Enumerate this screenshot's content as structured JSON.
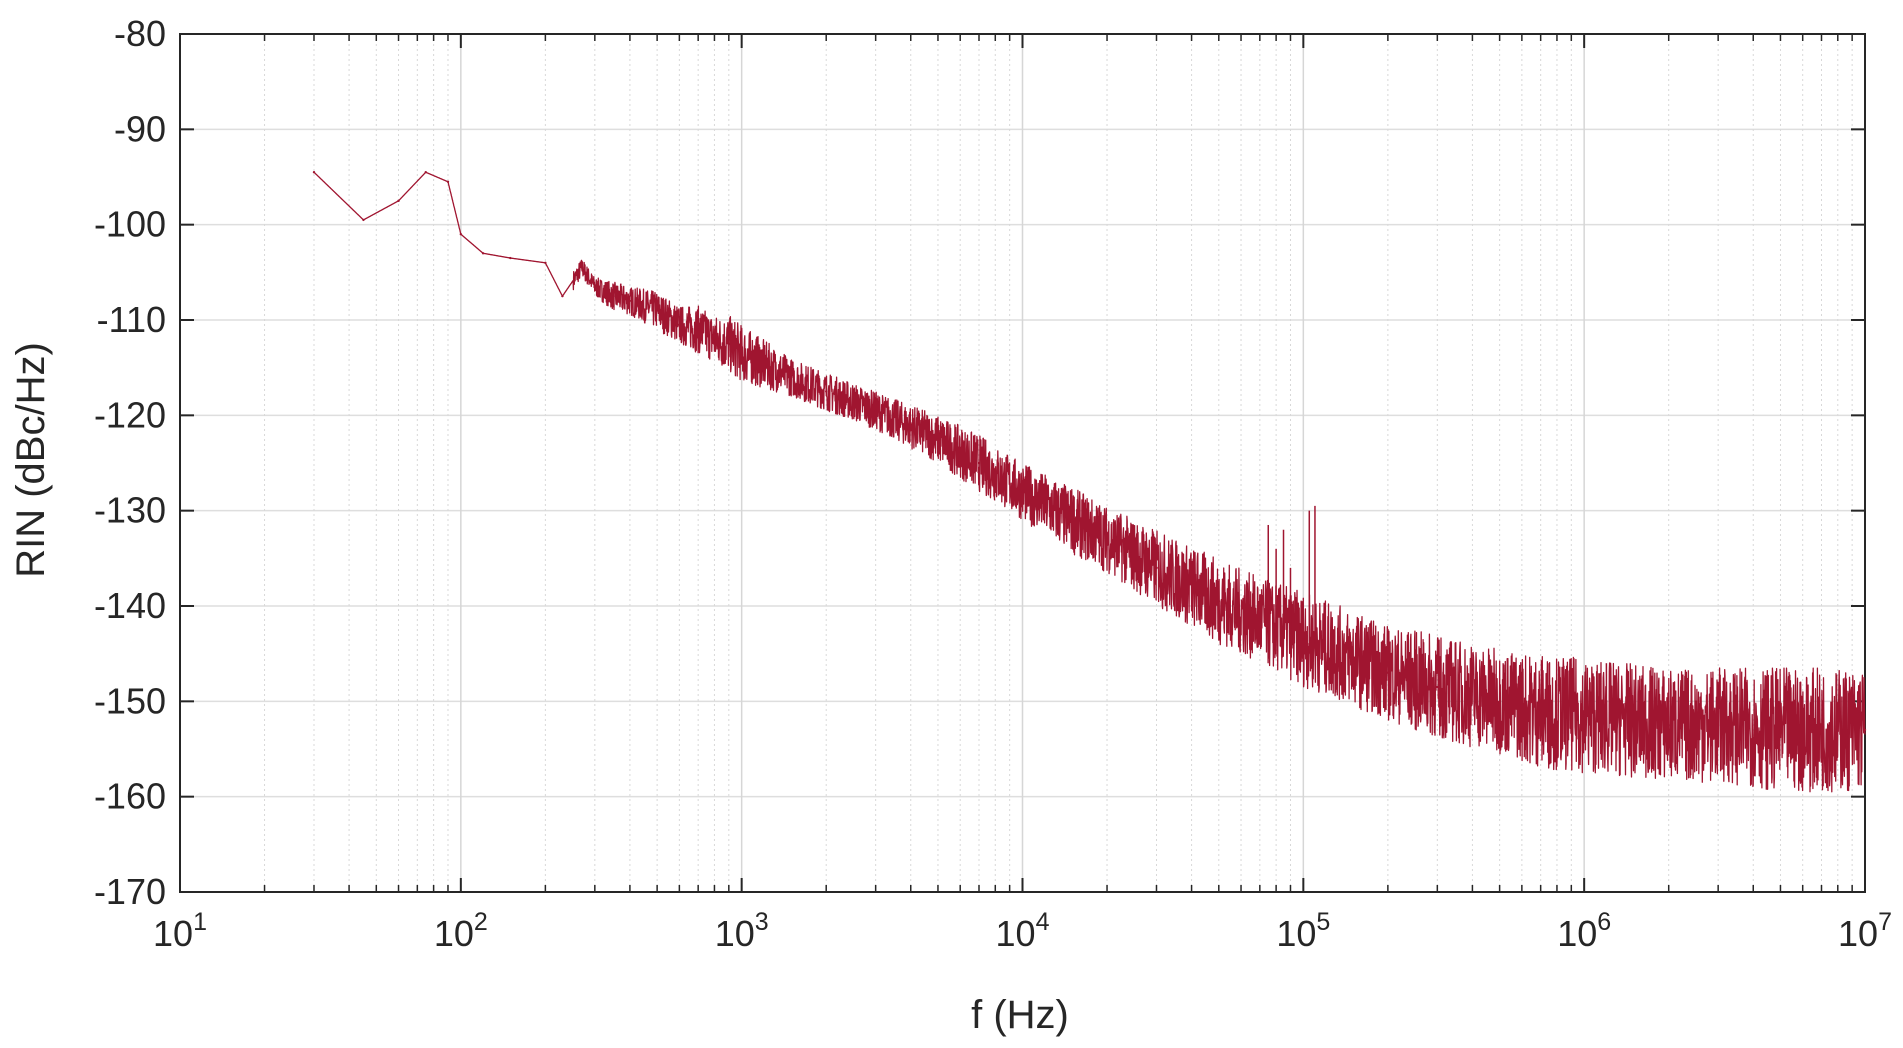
{
  "chart_data": {
    "type": "line",
    "xlabel": "f (Hz)",
    "ylabel": "RIN (dBc/Hz)",
    "x_scale": "log",
    "xlim": [
      10,
      10000000
    ],
    "ylim": [
      -170,
      -80
    ],
    "grid": true,
    "x_tick_labels": [
      {
        "base": "10",
        "exp": "1"
      },
      {
        "base": "10",
        "exp": "2"
      },
      {
        "base": "10",
        "exp": "3"
      },
      {
        "base": "10",
        "exp": "4"
      },
      {
        "base": "10",
        "exp": "5"
      },
      {
        "base": "10",
        "exp": "6"
      },
      {
        "base": "10",
        "exp": "7"
      }
    ],
    "y_tick_labels": [
      "-80",
      "-90",
      "-100",
      "-110",
      "-120",
      "-130",
      "-140",
      "-150",
      "-160",
      "-170"
    ],
    "series": [
      {
        "color": "#a01530",
        "x": [
          30,
          45,
          60,
          75,
          90,
          100,
          120,
          150,
          200,
          230,
          270,
          300,
          350,
          400,
          500,
          600,
          700,
          800,
          900,
          1000,
          1500,
          2000,
          3000,
          5000,
          7000,
          10000,
          15000,
          20000,
          30000,
          50000,
          70000,
          100000,
          150000,
          200000,
          300000,
          500000,
          700000,
          1000000,
          2000000,
          3000000,
          5000000,
          10000000
        ],
        "y": [
          -94.5,
          -99.5,
          -97.5,
          -94.5,
          -95.5,
          -101,
          -103,
          -103.5,
          -104,
          -107.5,
          -104.5,
          -106.5,
          -107.5,
          -108,
          -109,
          -110.5,
          -111,
          -112,
          -112.5,
          -113.5,
          -116,
          -117.5,
          -119.5,
          -122.5,
          -125,
          -128,
          -131,
          -133,
          -136,
          -139.5,
          -141.5,
          -143.5,
          -145.5,
          -147,
          -148.5,
          -150,
          -151,
          -151.5,
          -152.5,
          -152.5,
          -153,
          -153
        ],
        "noise_band_db": [
          1,
          1,
          1,
          1,
          1,
          1,
          1,
          1,
          1,
          1,
          1,
          1,
          1.5,
          1.5,
          2,
          2,
          2.5,
          2.5,
          3,
          3,
          2,
          2,
          2,
          2.5,
          3,
          3,
          3.5,
          3.5,
          4,
          4.5,
          4.5,
          5,
          5,
          5,
          5.5,
          5.5,
          6,
          6,
          6,
          6,
          6.5,
          6.5
        ],
        "spikes": [
          {
            "x": 75000,
            "y": -131.5
          },
          {
            "x": 80000,
            "y": -134
          },
          {
            "x": 85000,
            "y": -132
          },
          {
            "x": 90000,
            "y": -136
          },
          {
            "x": 105000,
            "y": -130
          },
          {
            "x": 110000,
            "y": -129.5
          },
          {
            "x": 750000,
            "y": -146
          },
          {
            "x": 1200000,
            "y": -146
          }
        ]
      }
    ]
  }
}
